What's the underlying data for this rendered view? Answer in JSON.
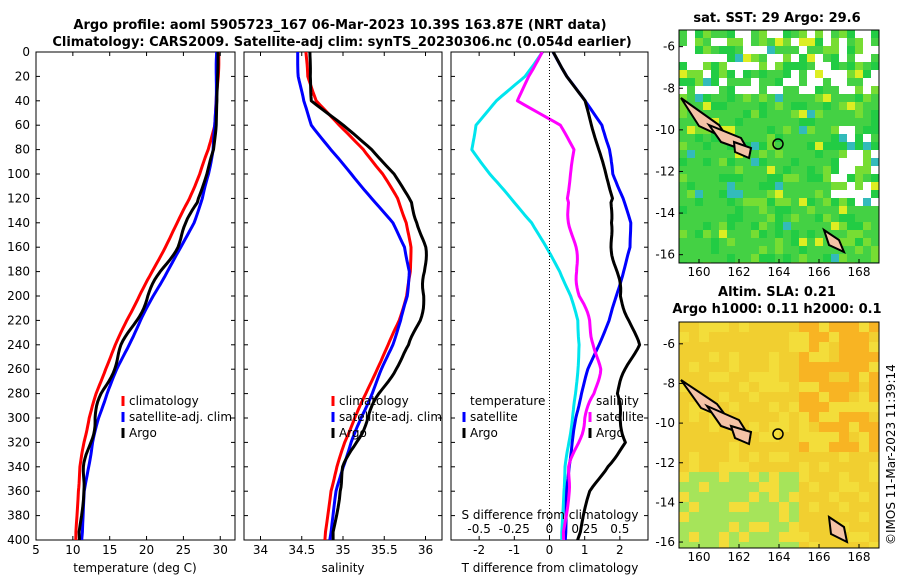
{
  "title_line1": "Argo profile: aoml 5905723_167 06-Mar-2023 10.39S 163.87E (NRT data)",
  "title_line2": "Climatology: CARS2009. Satellite-adj clim: synTS_20230306.nc (0.054d earlier)",
  "watermark": "©IMOS 11-Mar-2023 11:39:14",
  "colors": {
    "climatology": "#ff0000",
    "satellite": "#0000ff",
    "argo": "#000000",
    "cyan": "#00e5ee",
    "magenta": "#ff00ff",
    "land": "#f4c2a6"
  },
  "map1": {
    "title": "sat. SST: 29 Argo: 29.6",
    "xticks": [
      "160",
      "162",
      "164",
      "166",
      "168"
    ],
    "yticks": [
      "-6",
      "-8",
      "-10",
      "-12",
      "-14",
      "-16"
    ]
  },
  "map2": {
    "title1": "Altim. SLA: 0.21",
    "title2": "Argo h1000: 0.11 h2000: 0.1",
    "xticks": [
      "160",
      "162",
      "164",
      "166",
      "168"
    ],
    "yticks": [
      "-6",
      "-8",
      "-10",
      "-12",
      "-14",
      "-16"
    ]
  },
  "chart_data": [
    {
      "type": "line",
      "xlabel": "temperature (deg C)",
      "xticks": [
        "5",
        "10",
        "15",
        "20",
        "25",
        "30"
      ],
      "xlim": [
        5,
        32
      ],
      "ylim": [
        0,
        400
      ],
      "yticks": [
        "0",
        "20",
        "40",
        "60",
        "80",
        "100",
        "120",
        "140",
        "160",
        "180",
        "200",
        "220",
        "240",
        "260",
        "280",
        "300",
        "320",
        "340",
        "360",
        "380",
        "400"
      ],
      "legend": [
        "climatology",
        "satellite-adj. clim",
        "Argo"
      ],
      "series": [
        {
          "name": "climatology",
          "color": "#ff0000",
          "x": [
            29.8,
            29.7,
            29.5,
            29.2,
            28.4,
            27.2,
            25.8,
            24.2,
            22.5,
            20.8,
            19.0,
            17.3,
            15.8,
            14.4,
            13.2,
            12.2,
            11.5,
            11.0,
            10.7,
            10.4
          ],
          "depth": [
            0,
            20,
            40,
            60,
            80,
            100,
            120,
            140,
            160,
            180,
            200,
            220,
            240,
            260,
            280,
            300,
            320,
            340,
            360,
            400
          ]
        },
        {
          "name": "satellite-adj. clim",
          "color": "#0000ff",
          "x": [
            29.5,
            29.5,
            29.4,
            29.3,
            29.0,
            28.4,
            27.6,
            26.4,
            24.7,
            22.8,
            20.9,
            19.2,
            17.6,
            16.0,
            14.6,
            13.5,
            12.7,
            12.1,
            11.6,
            11.2
          ],
          "depth": [
            0,
            20,
            40,
            60,
            80,
            100,
            120,
            140,
            160,
            180,
            200,
            220,
            240,
            260,
            280,
            300,
            320,
            340,
            360,
            400
          ]
        },
        {
          "name": "Argo",
          "color": "#000000",
          "x": [
            29.7,
            29.6,
            29.6,
            29.4,
            29.1,
            28.2,
            27.0,
            25.6,
            24.0,
            22.0,
            20.2,
            18.5,
            16.8,
            15.4,
            14.0,
            13.0,
            12.3,
            11.7,
            11.2,
            10.9
          ],
          "depth": [
            0,
            20,
            40,
            60,
            80,
            100,
            120,
            140,
            160,
            180,
            200,
            220,
            240,
            260,
            280,
            300,
            320,
            340,
            360,
            400
          ]
        }
      ]
    },
    {
      "type": "line",
      "xlabel": "salinity",
      "xticks": [
        "34",
        "34.5",
        "35",
        "35.5",
        "36"
      ],
      "xlim": [
        33.8,
        36.2
      ],
      "ylim": [
        0,
        400
      ],
      "legend": [
        "climatology",
        "satellite-adj. clim",
        "Argo"
      ],
      "series": [
        {
          "name": "climatology",
          "color": "#ff0000",
          "x": [
            34.55,
            34.57,
            34.68,
            34.95,
            35.25,
            35.48,
            35.66,
            35.77,
            35.82,
            35.82,
            35.77,
            35.68,
            35.55,
            35.41,
            35.28,
            35.14,
            35.02,
            34.93,
            34.85,
            34.78
          ],
          "depth": [
            0,
            20,
            40,
            60,
            80,
            100,
            120,
            140,
            160,
            180,
            200,
            220,
            240,
            260,
            280,
            300,
            320,
            340,
            360,
            400
          ]
        },
        {
          "name": "satellite-adj. clim",
          "color": "#0000ff",
          "x": [
            34.45,
            34.46,
            34.52,
            34.62,
            34.85,
            35.1,
            35.35,
            35.6,
            35.75,
            35.8,
            35.78,
            35.7,
            35.6,
            35.47,
            35.35,
            35.22,
            35.1,
            35.0,
            34.92,
            34.84
          ],
          "depth": [
            0,
            20,
            40,
            60,
            80,
            100,
            120,
            140,
            160,
            180,
            200,
            220,
            240,
            260,
            280,
            300,
            320,
            340,
            360,
            400
          ]
        },
        {
          "name": "Argo",
          "color": "#000000",
          "x": [
            34.6,
            34.6,
            34.62,
            35.0,
            35.35,
            35.62,
            35.8,
            35.92,
            35.98,
            36.0,
            35.98,
            35.92,
            35.82,
            35.62,
            35.45,
            35.3,
            35.15,
            35.02,
            34.94,
            34.88
          ],
          "depth": [
            0,
            20,
            40,
            60,
            80,
            100,
            120,
            140,
            160,
            180,
            200,
            220,
            240,
            260,
            280,
            300,
            320,
            340,
            360,
            400
          ]
        }
      ]
    },
    {
      "type": "line",
      "xlabel": "T difference from climatology",
      "xlabel_top": "S difference from climatology",
      "xticks": [
        "-2",
        "-1",
        "0",
        "1",
        "2"
      ],
      "xticks_s": [
        "-0.5",
        "-0.25",
        "0",
        "0.25",
        "0.5"
      ],
      "xlim": [
        -2.8,
        2.8
      ],
      "ylim": [
        0,
        400
      ],
      "legend_t": {
        "title": "temperature",
        "items": [
          "satellite",
          "Argo"
        ]
      },
      "legend_s": {
        "title": "salinity",
        "items": [
          "satellite",
          "Argo"
        ]
      },
      "series": [
        {
          "name": "temperature satellite",
          "color": "#00e5ee",
          "x": [
            -0.2,
            -0.7,
            -1.5,
            -2.1,
            -2.2,
            -1.7,
            -1.1,
            -0.5,
            -0.1,
            0.3,
            0.6,
            0.8,
            0.85,
            0.8,
            0.75,
            0.65,
            0.55,
            0.45,
            0.4,
            0.35
          ],
          "depth": [
            0,
            20,
            40,
            60,
            80,
            100,
            120,
            140,
            160,
            180,
            200,
            220,
            240,
            260,
            280,
            300,
            320,
            340,
            360,
            400
          ]
        },
        {
          "name": "temperature Argo",
          "color": "#0000ff",
          "x": [
            0.1,
            0.5,
            1.0,
            1.5,
            1.7,
            1.8,
            2.1,
            2.3,
            2.3,
            2.1,
            1.9,
            1.7,
            1.4,
            1.1,
            0.9,
            0.75,
            0.65,
            0.55,
            0.5,
            0.45
          ],
          "depth": [
            0,
            20,
            40,
            60,
            80,
            100,
            120,
            140,
            160,
            180,
            200,
            220,
            240,
            260,
            280,
            300,
            320,
            340,
            360,
            400
          ]
        },
        {
          "name": "salinity satellite",
          "color": "#ff00ff",
          "x": [
            -0.2,
            -0.6,
            -0.9,
            0.3,
            0.7,
            0.6,
            0.5,
            0.6,
            0.7,
            0.8,
            0.85,
            1.1,
            1.3,
            1.4,
            1.3,
            1.0,
            0.8,
            0.6,
            0.5,
            0.4
          ],
          "depth": [
            0,
            20,
            40,
            60,
            80,
            100,
            120,
            140,
            160,
            180,
            200,
            220,
            240,
            260,
            280,
            300,
            320,
            340,
            360,
            400
          ]
        },
        {
          "name": "salinity Argo",
          "color": "#000000",
          "x": [
            0.1,
            0.5,
            1.0,
            1.2,
            1.4,
            1.6,
            1.8,
            1.7,
            1.8,
            1.9,
            2.0,
            2.3,
            2.5,
            2.2,
            1.9,
            2.0,
            2.2,
            1.6,
            1.2,
            0.8
          ],
          "depth": [
            0,
            20,
            40,
            60,
            80,
            100,
            120,
            140,
            160,
            180,
            200,
            220,
            240,
            260,
            280,
            300,
            320,
            340,
            360,
            400
          ]
        }
      ]
    }
  ]
}
